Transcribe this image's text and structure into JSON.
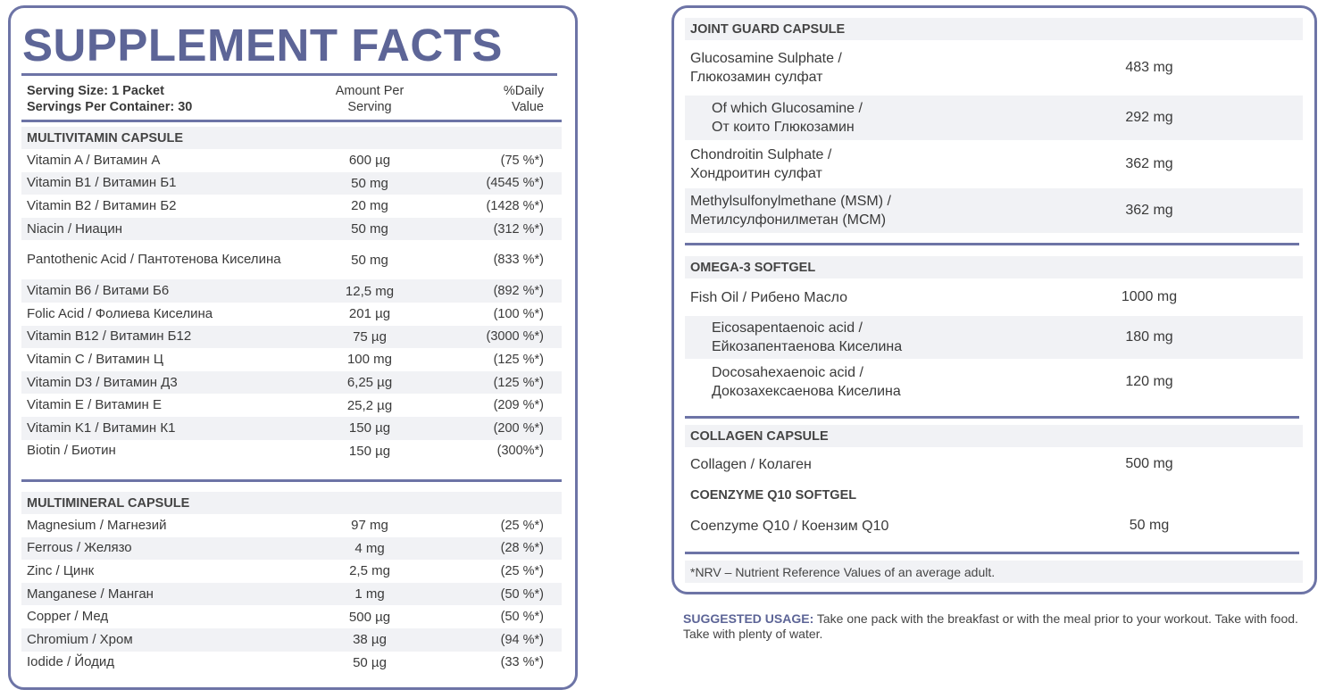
{
  "title": "SUPPLEMENT FACTS",
  "header": {
    "serving_size": "Serving Size: 1 Packet",
    "servings": "Servings Per Container: 30",
    "amount": "Amount Per",
    "amount2": "Serving",
    "dv": "%Daily",
    "dv2": "Value"
  },
  "multivitamin": {
    "title": "MULTIVITAMIN CAPSULE",
    "rows": [
      [
        "Vitamin A / Витамин А",
        "600 µg",
        "(75 %*)"
      ],
      [
        "Vitamin B1 / Витамин Б1",
        "50 mg",
        "(4545 %*)"
      ],
      [
        "Vitamin B2 / Витамин Б2",
        "20 mg",
        "(1428 %*)"
      ],
      [
        "Niacin / Ниацин",
        "50 mg",
        "(312 %*)"
      ],
      [
        "Pantothenic Acid / Пантотенова Киселина",
        "50 mg",
        "(833 %*)"
      ],
      [
        "Vitamin B6 / Витами Б6",
        "12,5  mg",
        "(892 %*)"
      ],
      [
        "Folic Acid / Фолиева Киселина",
        "201 µg",
        "(100 %*)"
      ],
      [
        "Vitamin B12 / Витамин Б12",
        "75 µg",
        "(3000 %*)"
      ],
      [
        "Vitamin C / Витамин Ц",
        "100 mg",
        "(125 %*)"
      ],
      [
        "Vitamin D3 / Витамин Д3",
        "6,25 µg",
        "(125 %*)"
      ],
      [
        "Vitamin E / Витамин Е",
        "25,2 µg",
        "(209 %*)"
      ],
      [
        "Vitamin K1 / Витамин К1",
        "150 µg",
        "(200 %*)"
      ],
      [
        "Biotin / Биотин",
        "150 µg",
        "(300%*)"
      ]
    ]
  },
  "multimineral": {
    "title": "MULTIMINERAL CAPSULE",
    "rows": [
      [
        "Magnesium / Магнезий",
        "97 mg",
        "(25 %*)"
      ],
      [
        "Ferrous / Желязо",
        "4 mg",
        "(28 %*)"
      ],
      [
        "Zinc / Цинк",
        "2,5 mg",
        "(25 %*)"
      ],
      [
        "Manganese / Манган",
        "1 mg",
        "(50 %*)"
      ],
      [
        "Copper / Мед",
        "500 µg",
        "(50 %*)"
      ],
      [
        "Chromium / Хром",
        "38 µg",
        "(94 %*)"
      ],
      [
        "Iodide / Йодид",
        "50 µg",
        "(33 %*)"
      ]
    ]
  },
  "joint": {
    "title": "JOINT GUARD CAPSULE",
    "rows": [
      [
        "Glucosamine Sulphate /",
        "Глюкозамин сулфат",
        "483 mg"
      ],
      [
        "Of which Glucosamine  /",
        "От които Глюкозамин",
        "292 mg"
      ],
      [
        "Chondroitin Sulphate /",
        "Хондроитин сулфат",
        "362 mg"
      ],
      [
        "Methylsulfonylmethane (MSM) /",
        "Метилсулфонилметан (МСМ)",
        "362 mg"
      ]
    ]
  },
  "omega": {
    "title": "OMEGA-3 SOFTGEL",
    "rows": [
      [
        "Fish Oil / Рибено Масло",
        "",
        "1000 mg"
      ],
      [
        "Eicosapentaenoic acid /",
        "Ейкозапентаенова Киселина",
        "180 mg"
      ],
      [
        "Docosahexaenoic acid /",
        "Докозахексаенова Киселина",
        "120 mg"
      ]
    ]
  },
  "collagen": {
    "title": "COLLAGEN CAPSULE",
    "rows": [
      [
        "Collagen / Колаген",
        "",
        "500 mg"
      ]
    ]
  },
  "coenzyme": {
    "title": "COENZYME Q10 SOFTGEL",
    "rows": [
      [
        "Coenzyme Q10 / Коензим Q10",
        "",
        "50 mg"
      ]
    ]
  },
  "nrv": "*NRV – Nutrient Reference Values of an average adult.",
  "usage": {
    "label": "SUGGESTED USAGE:",
    "text": " Take one pack with the breakfast or with the meal prior to your workout. Take with food. Take with plenty of water."
  },
  "colors": {
    "accent": "#5d6597",
    "border": "#6d74a6",
    "stripe": "#f1f2f5"
  }
}
